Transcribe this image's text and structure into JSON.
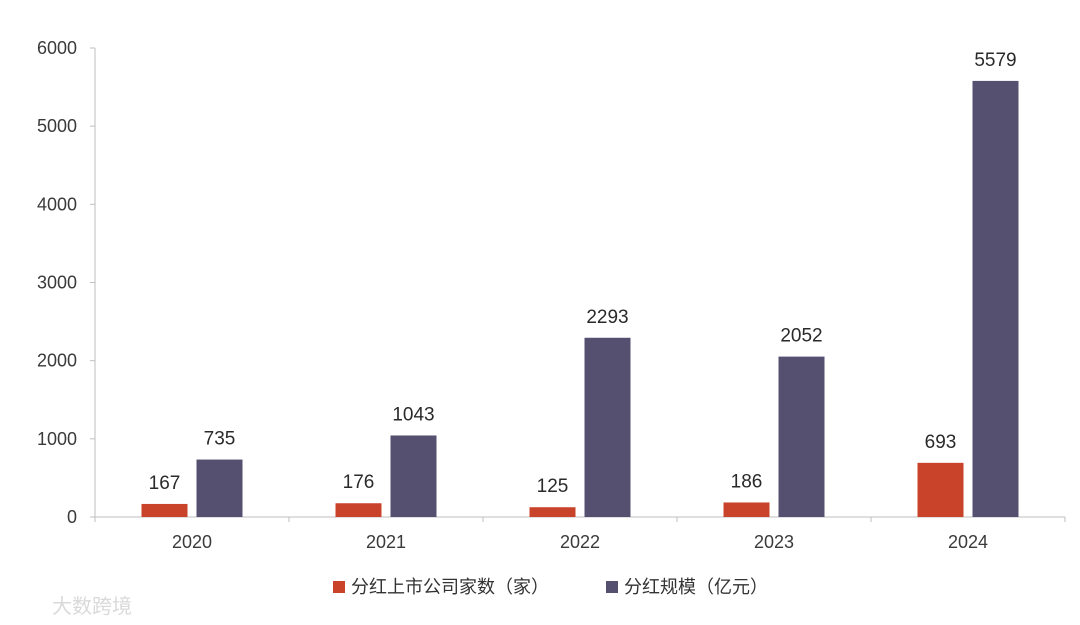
{
  "chart_data": {
    "type": "bar",
    "categories": [
      "2020",
      "2021",
      "2022",
      "2023",
      "2024"
    ],
    "series": [
      {
        "name": "分红上市公司家数（家）",
        "values": [
          167,
          176,
          125,
          186,
          693
        ],
        "color": "#c8432a"
      },
      {
        "name": "分红规模（亿元）",
        "values": [
          735,
          1043,
          2293,
          2052,
          5579
        ],
        "color": "#555070"
      }
    ],
    "ylim": [
      0,
      6000
    ],
    "yticks": [
      0,
      1000,
      2000,
      3000,
      4000,
      5000,
      6000
    ],
    "grid": false,
    "legend_position": "bottom-center",
    "title": "",
    "xlabel": "",
    "ylabel": ""
  },
  "watermark": {
    "text": "大数跨境"
  }
}
